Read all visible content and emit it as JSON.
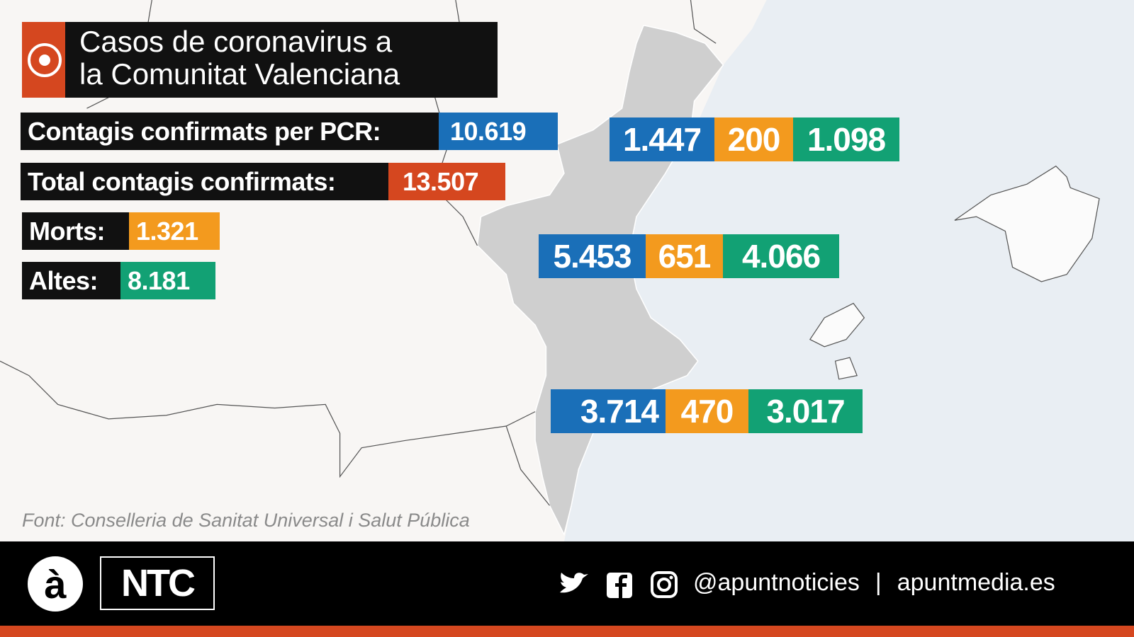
{
  "header": {
    "title_line1": "Casos de coronavirus a",
    "title_line2": "la Comunitat Valenciana"
  },
  "stats": [
    {
      "label": "Contagis confirmats per PCR:",
      "value": "10.619"
    },
    {
      "label": "Total contagis confirmats:",
      "value": "13.507"
    },
    {
      "label": "Morts:",
      "value": "1.321"
    },
    {
      "label": "Altes:",
      "value": "8.181"
    }
  ],
  "provinces": [
    {
      "contagis": "1.447",
      "morts": "200",
      "altes": "1.098"
    },
    {
      "contagis": "5.453",
      "morts": "651",
      "altes": "4.066"
    },
    {
      "contagis": "3.714",
      "morts": "470",
      "altes": "3.017"
    }
  ],
  "source": "Font: Conselleria de Sanitat Universal i Salut Pública",
  "footer": {
    "logo_a": "à",
    "logo_ntc": "NTC",
    "handle": "@apuntnoticies",
    "separator": "|",
    "site": "apuntmedia.es"
  }
}
